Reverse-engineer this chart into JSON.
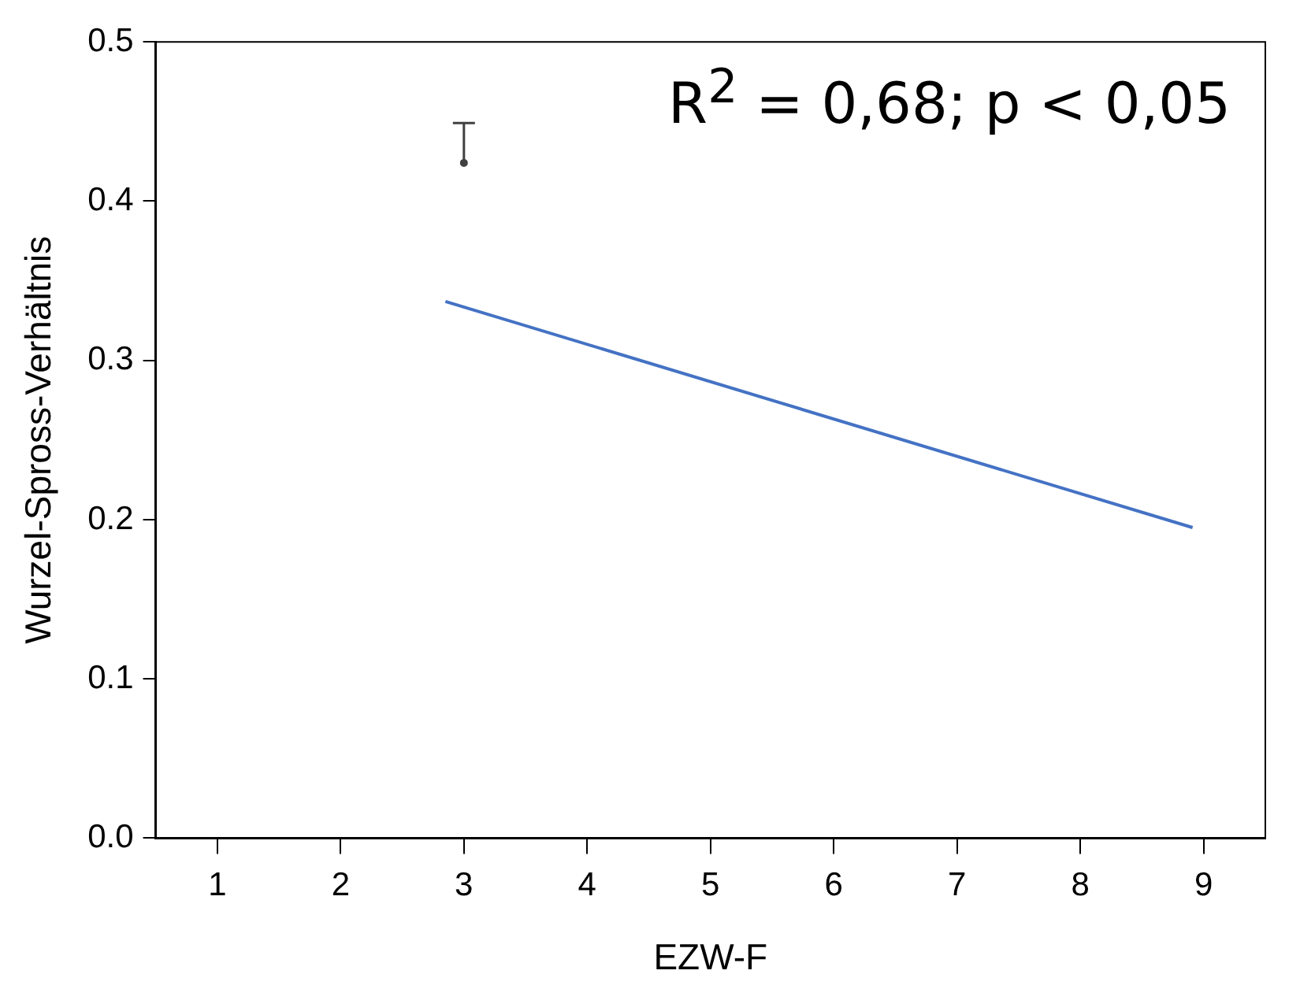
{
  "chart_data": {
    "type": "line",
    "xlabel": "EZW-F",
    "ylabel": "Wurzel-Spross-Verhältnis",
    "xlim": [
      0.5,
      9.5
    ],
    "xticks": [
      1,
      2,
      3,
      4,
      5,
      6,
      7,
      8,
      9
    ],
    "ylim": [
      0,
      0.5
    ],
    "yticks": [
      {
        "value": 0,
        "label": "0.0"
      },
      0.1,
      0.2,
      0.3,
      0.4,
      0.5
    ],
    "grid": false,
    "legend": false,
    "series": [
      {
        "color": "#4472c4",
        "x": [
          2.85,
          8.91
        ],
        "values": [
          0.337,
          0.195
        ]
      },
      {
        "type": "scatter",
        "color": "#404040",
        "x": [
          3
        ],
        "values": [
          0.424
        ],
        "errors": [
          [
            0.424,
            0.449
          ]
        ]
      }
    ],
    "annotations": [
      "R$^{2}$ = 0,68; p < 0,05"
    ]
  }
}
